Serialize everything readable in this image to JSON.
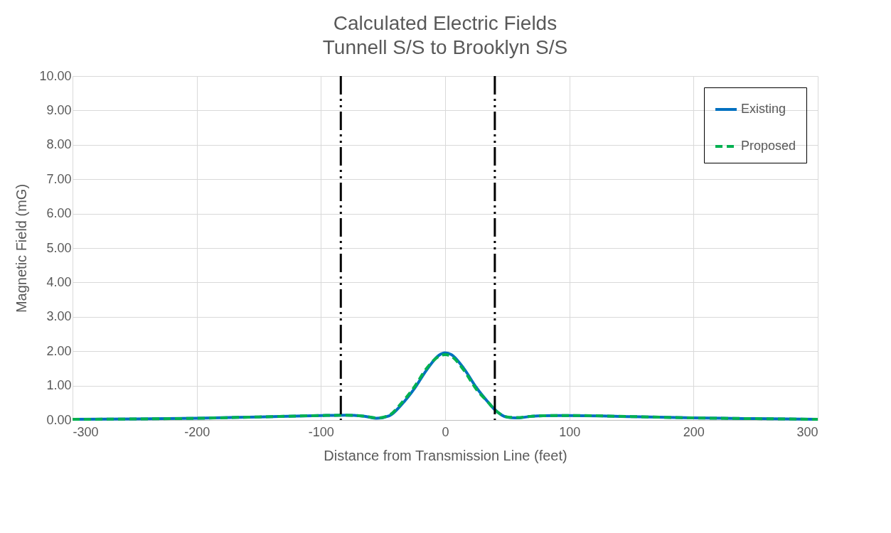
{
  "chart_data": {
    "type": "line",
    "title": "Calculated Electric Fields",
    "subtitle": "Tunnell S/S to Brooklyn S/S",
    "xlabel": "Distance from Transmission Line (feet)",
    "ylabel": "Magnetic Field (mG)",
    "x": [
      -300,
      -250,
      -200,
      -150,
      -100,
      -80,
      -65,
      -55,
      -45,
      -35,
      -25,
      -15,
      -5,
      0,
      5,
      15,
      25,
      35,
      40,
      50,
      58,
      70,
      90,
      100,
      150,
      200,
      250,
      300
    ],
    "series": [
      {
        "name": "Existing",
        "color": "#0070c0",
        "line_style": "solid",
        "values": [
          0.02,
          0.03,
          0.05,
          0.09,
          0.13,
          0.14,
          0.11,
          0.05,
          0.12,
          0.45,
          0.9,
          1.45,
          1.88,
          1.95,
          1.9,
          1.5,
          0.95,
          0.5,
          0.3,
          0.08,
          0.06,
          0.11,
          0.13,
          0.13,
          0.1,
          0.06,
          0.04,
          0.02
        ]
      },
      {
        "name": "Proposed",
        "color": "#00b050",
        "line_style": "dashed",
        "values": [
          0.02,
          0.03,
          0.05,
          0.09,
          0.13,
          0.14,
          0.11,
          0.06,
          0.14,
          0.5,
          0.95,
          1.5,
          1.85,
          1.9,
          1.85,
          1.45,
          0.9,
          0.5,
          0.3,
          0.09,
          0.07,
          0.11,
          0.13,
          0.13,
          0.1,
          0.06,
          0.04,
          0.02
        ]
      }
    ],
    "xlim": [
      -300,
      300
    ],
    "xticks": [
      -300,
      -200,
      -100,
      0,
      100,
      200,
      300
    ],
    "ylim": [
      0,
      10
    ],
    "yticks": [
      {
        "value": 0,
        "label": "0.00"
      },
      {
        "value": 1,
        "label": "1.00"
      },
      {
        "value": 2,
        "label": "2.00"
      },
      {
        "value": 3,
        "label": "3.00"
      },
      {
        "value": 4,
        "label": "4.00"
      },
      {
        "value": 5,
        "label": "5.00"
      },
      {
        "value": 6,
        "label": "6.00"
      },
      {
        "value": 7,
        "label": "7.00"
      },
      {
        "value": 8,
        "label": "8.00"
      },
      {
        "value": 9,
        "label": "9.00"
      },
      {
        "value": 10,
        "label": "10.00"
      }
    ],
    "ref_lines": [
      {
        "axis": "x",
        "value": -84,
        "color": "#000000",
        "line_style": "dashed"
      },
      {
        "axis": "x",
        "value": 40,
        "color": "#000000",
        "line_style": "dashed"
      }
    ],
    "grid": true,
    "legend": "top right",
    "marker": "none"
  }
}
